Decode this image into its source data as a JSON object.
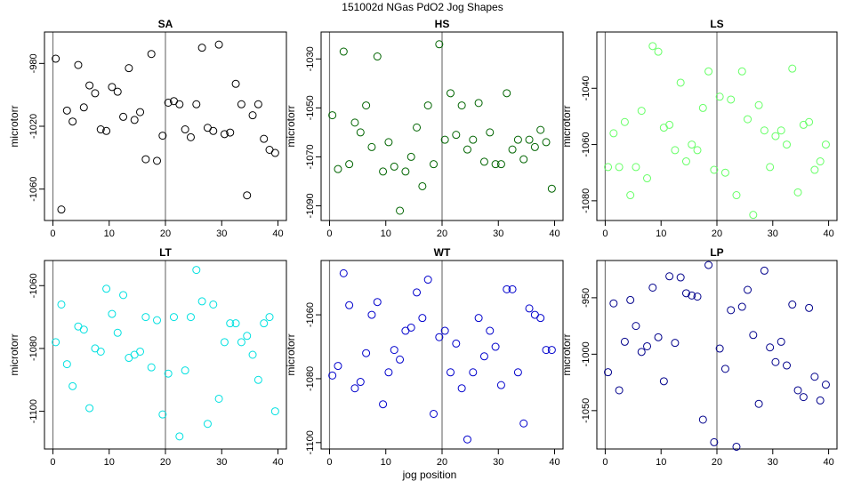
{
  "figure": {
    "title": "151002d   NGas PdO2 Jog Shapes",
    "xlabel": "jog position"
  },
  "chart_data": [
    {
      "type": "scatter",
      "title": "SA",
      "ylabel": "microtorr",
      "color": "#000000",
      "xlim": [
        -1.5,
        41.5
      ],
      "ylim": [
        -1080,
        -960
      ],
      "xticks": [
        0,
        10,
        20,
        30,
        40
      ],
      "yticks": [
        -980,
        -1020,
        -1060
      ],
      "vlines": [
        0,
        20
      ],
      "x": [
        0.5,
        1.5,
        2.5,
        3.5,
        4.5,
        5.5,
        6.5,
        7.5,
        8.5,
        9.5,
        10.5,
        11.5,
        12.5,
        13.5,
        14.5,
        15.5,
        16.5,
        17.5,
        18.5,
        19.5,
        20.5,
        21.5,
        22.5,
        23.5,
        24.5,
        25.5,
        26.5,
        27.5,
        28.5,
        29.5,
        30.5,
        31.5,
        32.5,
        33.5,
        34.5,
        35.5,
        36.5,
        37.5,
        38.5,
        39.5
      ],
      "y": [
        -977,
        -1073,
        -1010,
        -1017,
        -981,
        -1008,
        -994,
        -999,
        -1022,
        -1023,
        -995,
        -998,
        -1014,
        -983,
        -1016,
        -1011,
        -1041,
        -974,
        -1042,
        -1026,
        -1005,
        -1004,
        -1006,
        -1022,
        -1027,
        -1006,
        -970,
        -1021,
        -1023,
        -968,
        -1025,
        -1024,
        -993,
        -1006,
        -1064,
        -1013,
        -1006,
        -1028,
        -1035,
        -1037
      ]
    },
    {
      "type": "scatter",
      "title": "HS",
      "ylabel": "microtorr",
      "color": "#006400",
      "xlim": [
        -1.5,
        41.5
      ],
      "ylim": [
        -1096,
        -1019
      ],
      "xticks": [
        0,
        10,
        20,
        30,
        40
      ],
      "yticks": [
        -1030,
        -1050,
        -1070,
        -1090
      ],
      "vlines": [
        0,
        20
      ],
      "x": [
        0.5,
        1.5,
        2.5,
        3.5,
        4.5,
        5.5,
        6.5,
        7.5,
        8.5,
        9.5,
        10.5,
        11.5,
        12.5,
        13.5,
        14.5,
        15.5,
        16.5,
        17.5,
        18.5,
        19.5,
        20.5,
        21.5,
        22.5,
        23.5,
        24.5,
        25.5,
        26.5,
        27.5,
        28.5,
        29.5,
        30.5,
        31.5,
        32.5,
        33.5,
        34.5,
        35.5,
        36.5,
        37.5,
        38.5,
        39.5
      ],
      "y": [
        -1053,
        -1075,
        -1027,
        -1073,
        -1056,
        -1060,
        -1049,
        -1066,
        -1029,
        -1076,
        -1064,
        -1074,
        -1092,
        -1076,
        -1070,
        -1058,
        -1082,
        -1049,
        -1073,
        -1024,
        -1063,
        -1044,
        -1061,
        -1049,
        -1067,
        -1063,
        -1048,
        -1072,
        -1060,
        -1073,
        -1073,
        -1044,
        -1067,
        -1063,
        -1071,
        -1063,
        -1066,
        -1059,
        -1064,
        -1083
      ]
    },
    {
      "type": "scatter",
      "title": "LS",
      "ylabel": "microtorr",
      "color": "#66ff66",
      "xlim": [
        -1.5,
        41.5
      ],
      "ylim": [
        -1087,
        -1020
      ],
      "xticks": [
        0,
        10,
        20,
        30,
        40
      ],
      "yticks": [
        -1040,
        -1060,
        -1080
      ],
      "vlines": [
        0,
        20
      ],
      "x": [
        0.5,
        1.5,
        2.5,
        3.5,
        4.5,
        5.5,
        6.5,
        7.5,
        8.5,
        9.5,
        10.5,
        11.5,
        12.5,
        13.5,
        14.5,
        15.5,
        16.5,
        17.5,
        18.5,
        19.5,
        20.5,
        21.5,
        22.5,
        23.5,
        24.5,
        25.5,
        26.5,
        27.5,
        28.5,
        29.5,
        30.5,
        31.5,
        32.5,
        33.5,
        34.5,
        35.5,
        36.5,
        37.5,
        38.5,
        39.5
      ],
      "y": [
        -1068,
        -1056,
        -1068,
        -1052,
        -1078,
        -1068,
        -1048,
        -1072,
        -1025,
        -1027,
        -1054,
        -1053,
        -1062,
        -1038,
        -1066,
        -1060,
        -1062,
        -1047,
        -1034,
        -1069,
        -1043,
        -1070,
        -1044,
        -1078,
        -1034,
        -1051,
        -1085,
        -1046,
        -1055,
        -1068,
        -1057,
        -1055,
        -1060,
        -1033,
        -1077,
        -1053,
        -1052,
        -1069,
        -1066,
        -1060
      ]
    },
    {
      "type": "scatter",
      "title": "LT",
      "ylabel": "microtorr",
      "color": "#00e0e0",
      "xlim": [
        -1.5,
        41.5
      ],
      "ylim": [
        -1112,
        -1052
      ],
      "xticks": [
        0,
        10,
        20,
        30,
        40
      ],
      "yticks": [
        -1060,
        -1080,
        -1100
      ],
      "vlines": [
        0,
        20
      ],
      "x": [
        0.5,
        1.5,
        2.5,
        3.5,
        4.5,
        5.5,
        6.5,
        7.5,
        8.5,
        9.5,
        10.5,
        11.5,
        12.5,
        13.5,
        14.5,
        15.5,
        16.5,
        17.5,
        18.5,
        19.5,
        20.5,
        21.5,
        22.5,
        23.5,
        24.5,
        25.5,
        26.5,
        27.5,
        28.5,
        29.5,
        30.5,
        31.5,
        32.5,
        33.5,
        34.5,
        35.5,
        36.5,
        37.5,
        38.5,
        39.5
      ],
      "y": [
        -1078,
        -1066,
        -1085,
        -1092,
        -1073,
        -1074,
        -1099,
        -1080,
        -1081,
        -1061,
        -1069,
        -1075,
        -1063,
        -1083,
        -1082,
        -1081,
        -1070,
        -1086,
        -1071,
        -1101,
        -1088,
        -1070,
        -1108,
        -1087,
        -1070,
        -1055,
        -1065,
        -1104,
        -1066,
        -1096,
        -1078,
        -1072,
        -1072,
        -1078,
        -1076,
        -1082,
        -1090,
        -1072,
        -1070,
        -1100
      ]
    },
    {
      "type": "scatter",
      "title": "WT",
      "ylabel": "microtorr",
      "color": "#0000cc",
      "xlim": [
        -1.5,
        41.5
      ],
      "ylim": [
        -1102,
        -1043
      ],
      "xticks": [
        0,
        10,
        20,
        30,
        40
      ],
      "yticks": [
        -1060,
        -1080,
        -1100
      ],
      "vlines": [
        0,
        20
      ],
      "x": [
        0.5,
        1.5,
        2.5,
        3.5,
        4.5,
        5.5,
        6.5,
        7.5,
        8.5,
        9.5,
        10.5,
        11.5,
        12.5,
        13.5,
        14.5,
        15.5,
        16.5,
        17.5,
        18.5,
        19.5,
        20.5,
        21.5,
        22.5,
        23.5,
        24.5,
        25.5,
        26.5,
        27.5,
        28.5,
        29.5,
        30.5,
        31.5,
        32.5,
        33.5,
        34.5,
        35.5,
        36.5,
        37.5,
        38.5,
        39.5
      ],
      "y": [
        -1079,
        -1076,
        -1047,
        -1057,
        -1083,
        -1081,
        -1072,
        -1060,
        -1056,
        -1088,
        -1078,
        -1071,
        -1074,
        -1065,
        -1064,
        -1053,
        -1061,
        -1049,
        -1091,
        -1067,
        -1065,
        -1078,
        -1069,
        -1083,
        -1099,
        -1078,
        -1061,
        -1073,
        -1065,
        -1070,
        -1082,
        -1052,
        -1052,
        -1078,
        -1094,
        -1058,
        -1060,
        -1061,
        -1071,
        -1071
      ]
    },
    {
      "type": "scatter",
      "title": "LP",
      "ylabel": "microtorr",
      "color": "#00008b",
      "xlim": [
        -1.5,
        41.5
      ],
      "ylim": [
        -1084,
        -917
      ],
      "xticks": [
        0,
        10,
        20,
        30,
        40
      ],
      "yticks": [
        -950,
        -1000,
        -1050
      ],
      "vlines": [
        0,
        20
      ],
      "x": [
        0.5,
        1.5,
        2.5,
        3.5,
        4.5,
        5.5,
        6.5,
        7.5,
        8.5,
        9.5,
        10.5,
        11.5,
        12.5,
        13.5,
        14.5,
        15.5,
        16.5,
        17.5,
        18.5,
        19.5,
        20.5,
        21.5,
        22.5,
        23.5,
        24.5,
        25.5,
        26.5,
        27.5,
        28.5,
        29.5,
        30.5,
        31.5,
        32.5,
        33.5,
        34.5,
        35.5,
        36.5,
        37.5,
        38.5,
        39.5
      ],
      "y": [
        -1016,
        -955,
        -1032,
        -989,
        -952,
        -975,
        -998,
        -993,
        -941,
        -985,
        -1024,
        -931,
        -990,
        -932,
        -946,
        -948,
        -949,
        -1058,
        -921,
        -1078,
        -995,
        -1013,
        -961,
        -1082,
        -958,
        -943,
        -983,
        -1044,
        -926,
        -994,
        -1007,
        -989,
        -1010,
        -956,
        -1032,
        -1038,
        -959,
        -1020,
        -1041,
        -1027
      ]
    }
  ]
}
